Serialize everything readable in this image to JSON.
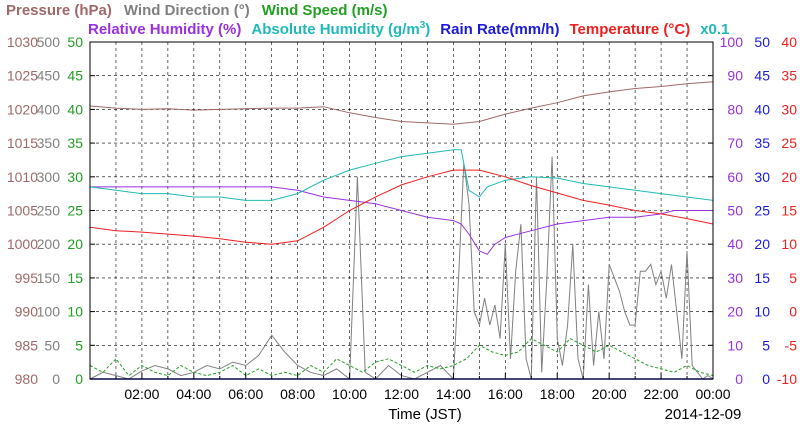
{
  "chart_data": {
    "type": "line",
    "date": "2014-12-09",
    "xlabel": "Time (JST)",
    "x_ticks": [
      "02:00",
      "04:00",
      "06:00",
      "08:00",
      "10:00",
      "12:00",
      "14:00",
      "16:00",
      "18:00",
      "20:00",
      "22:00",
      "00:00"
    ],
    "xlim_hours": [
      0,
      24
    ],
    "grid": true,
    "legend_row1": [
      {
        "text": "Pressure (hPa)",
        "color": "#a06868"
      },
      {
        "text": "Wind Direction (°)",
        "color": "#808080"
      },
      {
        "text": "Wind Speed (m/s)",
        "color": "#22a022"
      }
    ],
    "legend_row2": [
      {
        "text": "Relative Humidity (%)",
        "color": "#9a30e0"
      },
      {
        "text": "Absolute Humidity (g/m",
        "sup": "3",
        "close": ")",
        "color": "#20b8b8"
      },
      {
        "text": "Rain Rate(mm/h)",
        "color": "#1a1ad8"
      },
      {
        "text": "Temperature (°C)",
        "color": "#ee2020"
      },
      {
        "text": "x0.1",
        "color": "#20b8b8"
      }
    ],
    "axes": {
      "pressure": {
        "color": "#a06868",
        "ticks": [
          "1030",
          "1025",
          "1020",
          "1015",
          "1010",
          "1005",
          "1000",
          "995",
          "990",
          "985",
          "980"
        ],
        "range": [
          980,
          1030
        ]
      },
      "wind_dir": {
        "color": "#808080",
        "ticks": [
          "500",
          "450",
          "400",
          "350",
          "300",
          "250",
          "200",
          "150",
          "100",
          "50",
          "0"
        ],
        "range": [
          0,
          500
        ]
      },
      "wind_speed": {
        "color": "#22a022",
        "ticks": [
          "50",
          "45",
          "40",
          "35",
          "30",
          "25",
          "20",
          "15",
          "10",
          "5",
          "0"
        ],
        "range": [
          0,
          50
        ]
      },
      "humidity": {
        "color": "#9a30e0",
        "ticks": [
          "100",
          "90",
          "80",
          "70",
          "60",
          "50",
          "40",
          "30",
          "20",
          "10",
          "0"
        ],
        "range": [
          0,
          100
        ]
      },
      "rain": {
        "color": "#1a1ad8",
        "ticks": [
          "50",
          "45",
          "40",
          "35",
          "30",
          "25",
          "20",
          "15",
          "10",
          "5",
          "0"
        ],
        "range": [
          0,
          50
        ]
      },
      "temperature": {
        "color": "#ee2020",
        "ticks": [
          "40",
          "35",
          "30",
          "25",
          "20",
          "15",
          "10",
          "5",
          "0",
          "-5",
          "-10"
        ],
        "range": [
          -10,
          40
        ]
      }
    },
    "series": [
      {
        "key": "pressure",
        "axis": "pressure",
        "color": "#a06868",
        "x": [
          0,
          1,
          2,
          3,
          4,
          5,
          6,
          7,
          8,
          9,
          10,
          11,
          12,
          13,
          14,
          15,
          16,
          17,
          18,
          19,
          20,
          21,
          22,
          23,
          24
        ],
        "y": [
          1020.5,
          1020.2,
          1020.0,
          1020.1,
          1019.9,
          1020.0,
          1020.1,
          1020.2,
          1020.2,
          1020.4,
          1019.5,
          1018.8,
          1018.2,
          1018.0,
          1017.8,
          1018.2,
          1019.3,
          1020.2,
          1021.0,
          1022.0,
          1022.6,
          1023.1,
          1023.4,
          1023.8,
          1024.1
        ]
      },
      {
        "key": "wind_direction",
        "axis": "wind_dir",
        "color": "#808080",
        "x": [
          0,
          0.5,
          1,
          1.5,
          2,
          2.5,
          3,
          3.5,
          4,
          4.5,
          5,
          5.5,
          6,
          6.5,
          7,
          7.5,
          8,
          8.5,
          9,
          9.5,
          10,
          10.3,
          10.6,
          10.8,
          11,
          11.5,
          12,
          12.5,
          13,
          13.5,
          14,
          14.2,
          14.4,
          14.6,
          14.8,
          15,
          15.2,
          15.4,
          15.6,
          15.8,
          16,
          16.2,
          16.4,
          16.6,
          16.8,
          17,
          17.2,
          17.4,
          17.6,
          17.8,
          18,
          18.2,
          18.4,
          18.6,
          18.8,
          19,
          19.2,
          19.4,
          19.6,
          19.8,
          20,
          20.2,
          20.4,
          20.6,
          20.8,
          21,
          21.2,
          21.4,
          21.6,
          21.8,
          22,
          22.2,
          22.4,
          22.6,
          22.8,
          23,
          23.2,
          23.4,
          23.6,
          23.8,
          24
        ],
        "y": [
          0,
          10,
          5,
          0,
          12,
          20,
          15,
          5,
          10,
          20,
          15,
          25,
          20,
          35,
          65,
          40,
          20,
          10,
          5,
          15,
          0,
          300,
          10,
          5,
          0,
          20,
          5,
          0,
          10,
          20,
          0,
          150,
          320,
          260,
          100,
          80,
          120,
          80,
          110,
          60,
          200,
          30,
          160,
          230,
          30,
          0,
          300,
          10,
          150,
          330,
          60,
          20,
          80,
          200,
          30,
          0,
          140,
          20,
          100,
          30,
          170,
          150,
          130,
          100,
          80,
          80,
          160,
          160,
          170,
          140,
          160,
          120,
          170,
          100,
          30,
          190,
          20,
          10,
          0,
          5,
          0
        ]
      },
      {
        "key": "wind_speed",
        "axis": "wind_speed",
        "color": "#22a022",
        "x": [
          0,
          0.5,
          1,
          1.5,
          2,
          2.5,
          3,
          3.5,
          4,
          4.5,
          5,
          5.5,
          6,
          6.5,
          7,
          7.5,
          8,
          8.5,
          9,
          9.5,
          10,
          10.5,
          11,
          11.5,
          12,
          12.5,
          13,
          13.5,
          14,
          14.5,
          15,
          15.5,
          16,
          16.5,
          17,
          17.5,
          18,
          18.5,
          19,
          19.5,
          20,
          20.5,
          21,
          21.5,
          22,
          22.5,
          23,
          23.5,
          24
        ],
        "y": [
          2,
          1,
          3,
          0.5,
          2,
          1,
          0.5,
          2,
          1,
          0.5,
          1,
          2,
          0.5,
          1.5,
          0.5,
          1,
          0.5,
          2,
          1,
          3,
          2,
          1,
          2.5,
          3,
          2,
          1,
          2,
          1.5,
          2,
          3,
          5,
          4,
          3.5,
          4,
          6,
          5,
          4,
          6,
          5,
          4,
          5,
          4,
          3,
          2,
          1.5,
          1,
          2,
          1,
          0.5
        ]
      },
      {
        "key": "rain_rate",
        "axis": "rain",
        "color": "#1a1ad8",
        "x": [
          0,
          2,
          4,
          6,
          8,
          10,
          12,
          14,
          16,
          18,
          20,
          22,
          24
        ],
        "y": [
          0,
          0,
          0,
          0,
          0,
          0,
          0,
          0,
          0,
          0,
          0,
          0,
          0
        ]
      },
      {
        "key": "relative_humidity",
        "axis": "humidity",
        "color": "#9a30e0",
        "x": [
          0,
          1,
          2,
          3,
          4,
          5,
          6,
          7,
          8,
          9,
          10,
          11,
          12,
          13,
          14,
          14.3,
          14.6,
          15,
          15.3,
          15.6,
          16,
          17,
          18,
          19,
          20,
          21,
          22,
          22.5,
          23,
          24
        ],
        "y": [
          57,
          57,
          57,
          57,
          57,
          57,
          57,
          57,
          56,
          54,
          53,
          52,
          50,
          48,
          47,
          46,
          43,
          38,
          37,
          40,
          42,
          44,
          46,
          47,
          48,
          48,
          49,
          50,
          50,
          50
        ]
      },
      {
        "key": "absolute_humidity",
        "axis": "wind_speed",
        "color": "#20b8b8",
        "x": [
          0,
          1,
          2,
          3,
          4,
          5,
          6,
          7,
          8,
          9,
          10,
          11,
          12,
          13,
          14,
          14.3,
          14.6,
          15,
          15.3,
          16,
          17,
          18,
          19,
          20,
          21,
          22,
          23,
          24
        ],
        "y": [
          28.5,
          28,
          27.5,
          27.5,
          27,
          27,
          26.5,
          26.5,
          27.5,
          29.5,
          31,
          32,
          33,
          33.5,
          34,
          34,
          28,
          27,
          28.5,
          29.5,
          30,
          29.8,
          29,
          28.5,
          28,
          27.5,
          27,
          26.5
        ]
      },
      {
        "key": "temperature",
        "axis": "temperature",
        "color": "#ee2020",
        "x": [
          0,
          1,
          2,
          3,
          4,
          5,
          6,
          7,
          8,
          9,
          10,
          11,
          12,
          13,
          14,
          15,
          16,
          17,
          18,
          19,
          20,
          21,
          22,
          23,
          24
        ],
        "y": [
          12.5,
          12.0,
          11.8,
          11.5,
          11.2,
          10.8,
          10.3,
          10.0,
          10.5,
          12.5,
          15.0,
          17.0,
          18.8,
          20.0,
          21.0,
          21.0,
          20.0,
          18.7,
          17.6,
          16.5,
          15.8,
          15.0,
          14.5,
          13.8,
          13.0
        ]
      }
    ]
  }
}
